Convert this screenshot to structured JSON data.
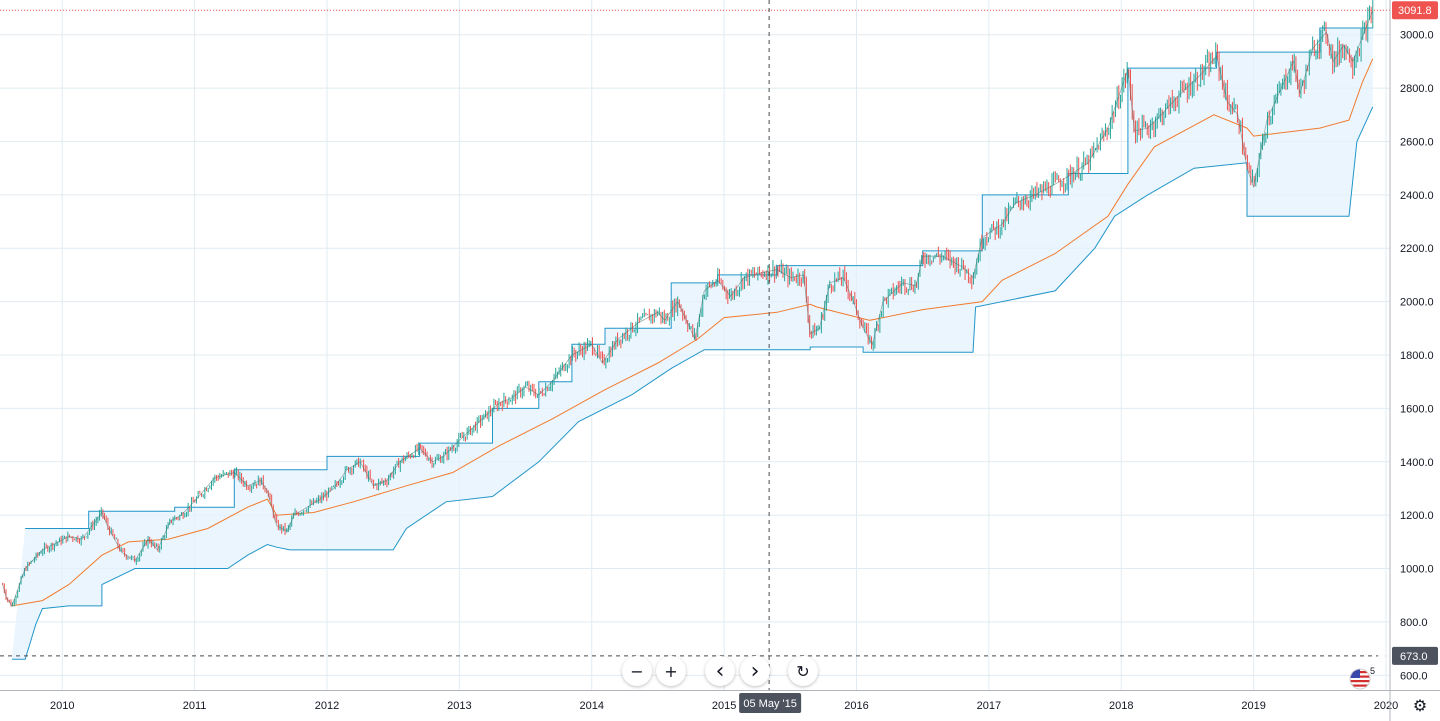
{
  "chart_data": {
    "type": "candlestick",
    "title": "",
    "xlabel": "",
    "ylabel": "",
    "x_ticks": [
      "2010",
      "2011",
      "2012",
      "2013",
      "2014",
      "2015",
      "2016",
      "2017",
      "2018",
      "2019",
      "2020"
    ],
    "y_ticks": [
      "600.0",
      "800.0",
      "1000.0",
      "1200.0",
      "1400.0",
      "1600.0",
      "1800.0",
      "2000.0",
      "2200.0",
      "2400.0",
      "2600.0",
      "2800.0",
      "3000.0"
    ],
    "ylim": [
      545,
      3130
    ],
    "xlim": [
      2009.53,
      2020.03
    ],
    "last_price_label": "3091.8",
    "crosshair": {
      "price_label": "673.0",
      "date_label": "05 May '15",
      "price": 673.0,
      "date": 2015.34
    },
    "grid": true,
    "series": [
      {
        "kind": "price",
        "color": "#26a69a",
        "points": [
          [
            2009.55,
            940
          ],
          [
            2009.58,
            890
          ],
          [
            2009.62,
            860
          ],
          [
            2009.72,
            1000
          ],
          [
            2009.85,
            1070
          ],
          [
            2010.05,
            1120
          ],
          [
            2010.15,
            1110
          ],
          [
            2010.3,
            1210
          ],
          [
            2010.35,
            1150
          ],
          [
            2010.45,
            1060
          ],
          [
            2010.55,
            1030
          ],
          [
            2010.65,
            1110
          ],
          [
            2010.72,
            1070
          ],
          [
            2010.82,
            1180
          ],
          [
            2010.9,
            1200
          ],
          [
            2011.05,
            1280
          ],
          [
            2011.15,
            1340
          ],
          [
            2011.3,
            1360
          ],
          [
            2011.4,
            1310
          ],
          [
            2011.5,
            1330
          ],
          [
            2011.55,
            1290
          ],
          [
            2011.62,
            1160
          ],
          [
            2011.7,
            1140
          ],
          [
            2011.75,
            1200
          ],
          [
            2011.85,
            1230
          ],
          [
            2011.95,
            1260
          ],
          [
            2012.05,
            1300
          ],
          [
            2012.15,
            1370
          ],
          [
            2012.25,
            1400
          ],
          [
            2012.35,
            1310
          ],
          [
            2012.45,
            1330
          ],
          [
            2012.55,
            1400
          ],
          [
            2012.7,
            1450
          ],
          [
            2012.8,
            1400
          ],
          [
            2012.88,
            1420
          ],
          [
            2013.0,
            1480
          ],
          [
            2013.15,
            1550
          ],
          [
            2013.3,
            1620
          ],
          [
            2013.4,
            1640
          ],
          [
            2013.5,
            1680
          ],
          [
            2013.6,
            1650
          ],
          [
            2013.7,
            1700
          ],
          [
            2013.85,
            1800
          ],
          [
            2014.0,
            1840
          ],
          [
            2014.08,
            1770
          ],
          [
            2014.2,
            1860
          ],
          [
            2014.35,
            1920
          ],
          [
            2014.5,
            1960
          ],
          [
            2014.55,
            1930
          ],
          [
            2014.65,
            2000
          ],
          [
            2014.78,
            1860
          ],
          [
            2014.85,
            2040
          ],
          [
            2014.95,
            2080
          ],
          [
            2015.05,
            2020
          ],
          [
            2015.15,
            2090
          ],
          [
            2015.3,
            2110
          ],
          [
            2015.4,
            2120
          ],
          [
            2015.5,
            2090
          ],
          [
            2015.6,
            2100
          ],
          [
            2015.65,
            1880
          ],
          [
            2015.72,
            1900
          ],
          [
            2015.8,
            2070
          ],
          [
            2015.9,
            2090
          ],
          [
            2015.97,
            2010
          ],
          [
            2016.05,
            1900
          ],
          [
            2016.12,
            1840
          ],
          [
            2016.2,
            2000
          ],
          [
            2016.35,
            2070
          ],
          [
            2016.45,
            2060
          ],
          [
            2016.5,
            2170
          ],
          [
            2016.65,
            2170
          ],
          [
            2016.8,
            2130
          ],
          [
            2016.88,
            2090
          ],
          [
            2016.95,
            2240
          ],
          [
            2017.1,
            2290
          ],
          [
            2017.2,
            2370
          ],
          [
            2017.35,
            2400
          ],
          [
            2017.5,
            2440
          ],
          [
            2017.6,
            2470
          ],
          [
            2017.75,
            2520
          ],
          [
            2017.9,
            2650
          ],
          [
            2018.05,
            2870
          ],
          [
            2018.1,
            2640
          ],
          [
            2018.2,
            2650
          ],
          [
            2018.3,
            2700
          ],
          [
            2018.45,
            2780
          ],
          [
            2018.6,
            2850
          ],
          [
            2018.72,
            2920
          ],
          [
            2018.8,
            2750
          ],
          [
            2018.88,
            2700
          ],
          [
            2018.95,
            2500
          ],
          [
            2019.0,
            2430
          ],
          [
            2019.1,
            2680
          ],
          [
            2019.3,
            2900
          ],
          [
            2019.35,
            2780
          ],
          [
            2019.45,
            2950
          ],
          [
            2019.55,
            3010
          ],
          [
            2019.6,
            2900
          ],
          [
            2019.68,
            2960
          ],
          [
            2019.75,
            2900
          ],
          [
            2019.82,
            2990
          ],
          [
            2019.9,
            3090
          ]
        ]
      },
      {
        "kind": "upper-band",
        "color": "#2196c8",
        "points": [
          [
            2009.72,
            1150
          ],
          [
            2010.2,
            1150
          ],
          [
            2010.2,
            1215
          ],
          [
            2010.85,
            1215
          ],
          [
            2010.85,
            1230
          ],
          [
            2011.3,
            1230
          ],
          [
            2011.3,
            1370
          ],
          [
            2012.0,
            1370
          ],
          [
            2012.0,
            1420
          ],
          [
            2012.7,
            1420
          ],
          [
            2012.7,
            1470
          ],
          [
            2013.25,
            1470
          ],
          [
            2013.25,
            1600
          ],
          [
            2013.6,
            1600
          ],
          [
            2013.6,
            1700
          ],
          [
            2013.85,
            1700
          ],
          [
            2013.85,
            1840
          ],
          [
            2014.1,
            1840
          ],
          [
            2014.1,
            1900
          ],
          [
            2014.6,
            1900
          ],
          [
            2014.6,
            2070
          ],
          [
            2014.95,
            2070
          ],
          [
            2014.95,
            2100
          ],
          [
            2015.4,
            2100
          ],
          [
            2015.4,
            2135
          ],
          [
            2016.5,
            2135
          ],
          [
            2016.5,
            2190
          ],
          [
            2016.95,
            2190
          ],
          [
            2016.95,
            2400
          ],
          [
            2017.6,
            2400
          ],
          [
            2017.6,
            2480
          ],
          [
            2018.05,
            2480
          ],
          [
            2018.05,
            2875
          ],
          [
            2018.72,
            2875
          ],
          [
            2018.72,
            2935
          ],
          [
            2019.5,
            2935
          ],
          [
            2019.5,
            3025
          ],
          [
            2019.9,
            3025
          ]
        ]
      },
      {
        "kind": "middle-line",
        "color": "#f37b2e",
        "points": [
          [
            2009.62,
            860
          ],
          [
            2009.85,
            880
          ],
          [
            2010.05,
            940
          ],
          [
            2010.3,
            1050
          ],
          [
            2010.5,
            1100
          ],
          [
            2010.8,
            1110
          ],
          [
            2011.1,
            1150
          ],
          [
            2011.4,
            1230
          ],
          [
            2011.55,
            1260
          ],
          [
            2011.62,
            1200
          ],
          [
            2011.9,
            1210
          ],
          [
            2012.2,
            1250
          ],
          [
            2012.6,
            1310
          ],
          [
            2012.95,
            1360
          ],
          [
            2013.3,
            1460
          ],
          [
            2013.7,
            1560
          ],
          [
            2014.1,
            1670
          ],
          [
            2014.5,
            1770
          ],
          [
            2014.8,
            1860
          ],
          [
            2015.0,
            1940
          ],
          [
            2015.4,
            1960
          ],
          [
            2015.65,
            1990
          ],
          [
            2015.7,
            1980
          ],
          [
            2016.1,
            1930
          ],
          [
            2016.5,
            1970
          ],
          [
            2016.95,
            2000
          ],
          [
            2017.1,
            2080
          ],
          [
            2017.5,
            2180
          ],
          [
            2017.9,
            2320
          ],
          [
            2018.05,
            2440
          ],
          [
            2018.25,
            2580
          ],
          [
            2018.7,
            2700
          ],
          [
            2018.95,
            2650
          ],
          [
            2019.0,
            2620
          ],
          [
            2019.5,
            2650
          ],
          [
            2019.72,
            2680
          ],
          [
            2019.82,
            2820
          ],
          [
            2019.9,
            2910
          ]
        ]
      },
      {
        "kind": "lower-band",
        "color": "#2196c8",
        "points": [
          [
            2009.62,
            660
          ],
          [
            2009.72,
            660
          ],
          [
            2009.8,
            790
          ],
          [
            2009.85,
            850
          ],
          [
            2010.05,
            860
          ],
          [
            2010.3,
            860
          ],
          [
            2010.3,
            940
          ],
          [
            2010.55,
            1000
          ],
          [
            2011.25,
            1000
          ],
          [
            2011.4,
            1050
          ],
          [
            2011.55,
            1090
          ],
          [
            2011.62,
            1080
          ],
          [
            2011.72,
            1070
          ],
          [
            2012.5,
            1070
          ],
          [
            2012.6,
            1150
          ],
          [
            2012.9,
            1250
          ],
          [
            2013.25,
            1270
          ],
          [
            2013.6,
            1400
          ],
          [
            2013.9,
            1550
          ],
          [
            2014.3,
            1650
          ],
          [
            2014.6,
            1750
          ],
          [
            2014.85,
            1820
          ],
          [
            2015.2,
            1820
          ],
          [
            2015.65,
            1820
          ],
          [
            2015.65,
            1830
          ],
          [
            2016.05,
            1830
          ],
          [
            2016.05,
            1810
          ],
          [
            2016.88,
            1810
          ],
          [
            2016.9,
            1980
          ],
          [
            2017.5,
            2040
          ],
          [
            2017.8,
            2200
          ],
          [
            2017.95,
            2320
          ],
          [
            2018.2,
            2400
          ],
          [
            2018.55,
            2500
          ],
          [
            2018.95,
            2520
          ],
          [
            2018.95,
            2320
          ],
          [
            2019.72,
            2320
          ],
          [
            2019.78,
            2600
          ],
          [
            2019.9,
            2730
          ]
        ]
      }
    ]
  },
  "controls": {
    "zoom_out": "−",
    "zoom_in": "+",
    "scroll_left": "‹",
    "scroll_right": "›",
    "reset": "↻"
  },
  "badge": {
    "count": "5"
  },
  "icons": {
    "zoom_out": "minus-icon",
    "zoom_in": "plus-icon",
    "scroll_left": "chevron-left-icon",
    "scroll_right": "chevron-right-icon",
    "reset": "reset-icon",
    "settings": "gear-icon",
    "flag": "us-flag-icon"
  },
  "colors": {
    "band_fill": "#e3f2fd",
    "band_line": "#2196c8",
    "middle": "#f37b2e",
    "up": "#26a69a",
    "down": "#ef5350",
    "last_price": "#ef5350",
    "crosshair": "#4a4a4a",
    "grid": "#e1ecf2"
  }
}
